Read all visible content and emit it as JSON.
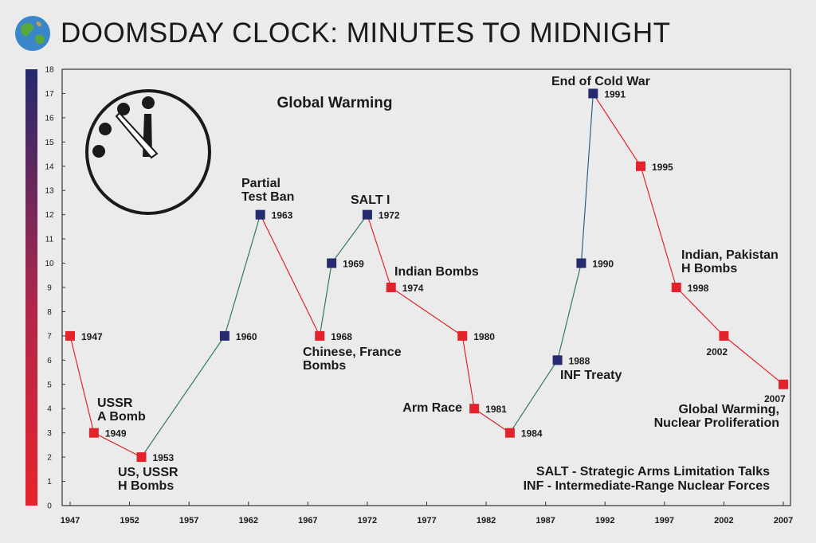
{
  "header": {
    "title": "DOOMSDAY CLOCK: MINUTES TO MIDNIGHT",
    "icon": "globe-icon"
  },
  "colors": {
    "background": "#ebebeb",
    "red": "#e3232b",
    "navy": "#262a6e",
    "line_red": "#e3232b",
    "line_green": "#2e7d5a",
    "line_blue": "#2f5f8a",
    "clock": "#1a1a1a"
  },
  "chart_data": {
    "type": "line",
    "title": "Global Warming",
    "xlabel": "",
    "ylabel": "",
    "xlim": [
      1947,
      2007
    ],
    "ylim": [
      0,
      18
    ],
    "grid": false,
    "x_ticks": [
      "1947",
      "1952",
      "1957",
      "1962",
      "1967",
      "1972",
      "1977",
      "1982",
      "1987",
      "1992",
      "1997",
      "2002",
      "2007"
    ],
    "y_ticks": [
      "0",
      "1",
      "2",
      "3",
      "4",
      "5",
      "6",
      "7",
      "8",
      "9",
      "10",
      "11",
      "12",
      "13",
      "14",
      "15",
      "16",
      "17",
      "18"
    ],
    "points": [
      {
        "year": 1947,
        "minutes": 7,
        "label": "1947",
        "trend": "down",
        "note": ""
      },
      {
        "year": 1949,
        "minutes": 3,
        "label": "1949",
        "trend": "down",
        "note": "USSR\nA Bomb"
      },
      {
        "year": 1953,
        "minutes": 2,
        "label": "1953",
        "trend": "down",
        "note": "US, USSR\nH Bombs"
      },
      {
        "year": 1960,
        "minutes": 7,
        "label": "1960",
        "trend": "up",
        "note": ""
      },
      {
        "year": 1963,
        "minutes": 12,
        "label": "1963",
        "trend": "up",
        "note": "Partial\nTest Ban"
      },
      {
        "year": 1968,
        "minutes": 7,
        "label": "1968",
        "trend": "down",
        "note": "Chinese, France\nBombs"
      },
      {
        "year": 1969,
        "minutes": 10,
        "label": "1969",
        "trend": "up",
        "note": ""
      },
      {
        "year": 1972,
        "minutes": 12,
        "label": "1972",
        "trend": "up",
        "note": "SALT I"
      },
      {
        "year": 1974,
        "minutes": 9,
        "label": "1974",
        "trend": "down",
        "note": "Indian Bombs"
      },
      {
        "year": 1980,
        "minutes": 7,
        "label": "1980",
        "trend": "down",
        "note": ""
      },
      {
        "year": 1981,
        "minutes": 4,
        "label": "1981",
        "trend": "down",
        "note": "Arm Race"
      },
      {
        "year": 1984,
        "minutes": 3,
        "label": "1984",
        "trend": "down",
        "note": ""
      },
      {
        "year": 1988,
        "minutes": 6,
        "label": "1988",
        "trend": "up",
        "note": "INF Treaty"
      },
      {
        "year": 1990,
        "minutes": 10,
        "label": "1990",
        "trend": "up",
        "note": ""
      },
      {
        "year": 1991,
        "minutes": 17,
        "label": "1991",
        "trend": "up",
        "note": "End of Cold War"
      },
      {
        "year": 1995,
        "minutes": 14,
        "label": "1995",
        "trend": "down",
        "note": ""
      },
      {
        "year": 1998,
        "minutes": 9,
        "label": "1998",
        "trend": "down",
        "note": "Indian, Pakistan\nH Bombs"
      },
      {
        "year": 2002,
        "minutes": 7,
        "label": "2002",
        "trend": "down",
        "note": ""
      },
      {
        "year": 2007,
        "minutes": 5,
        "label": "2007",
        "trend": "down",
        "note": "Global Warming,\nNuclear Proliferation"
      }
    ],
    "legend_notes": [
      "SALT - Strategic Arms Limitation Talks",
      "INF - Intermediate-Range Nuclear Forces"
    ]
  }
}
